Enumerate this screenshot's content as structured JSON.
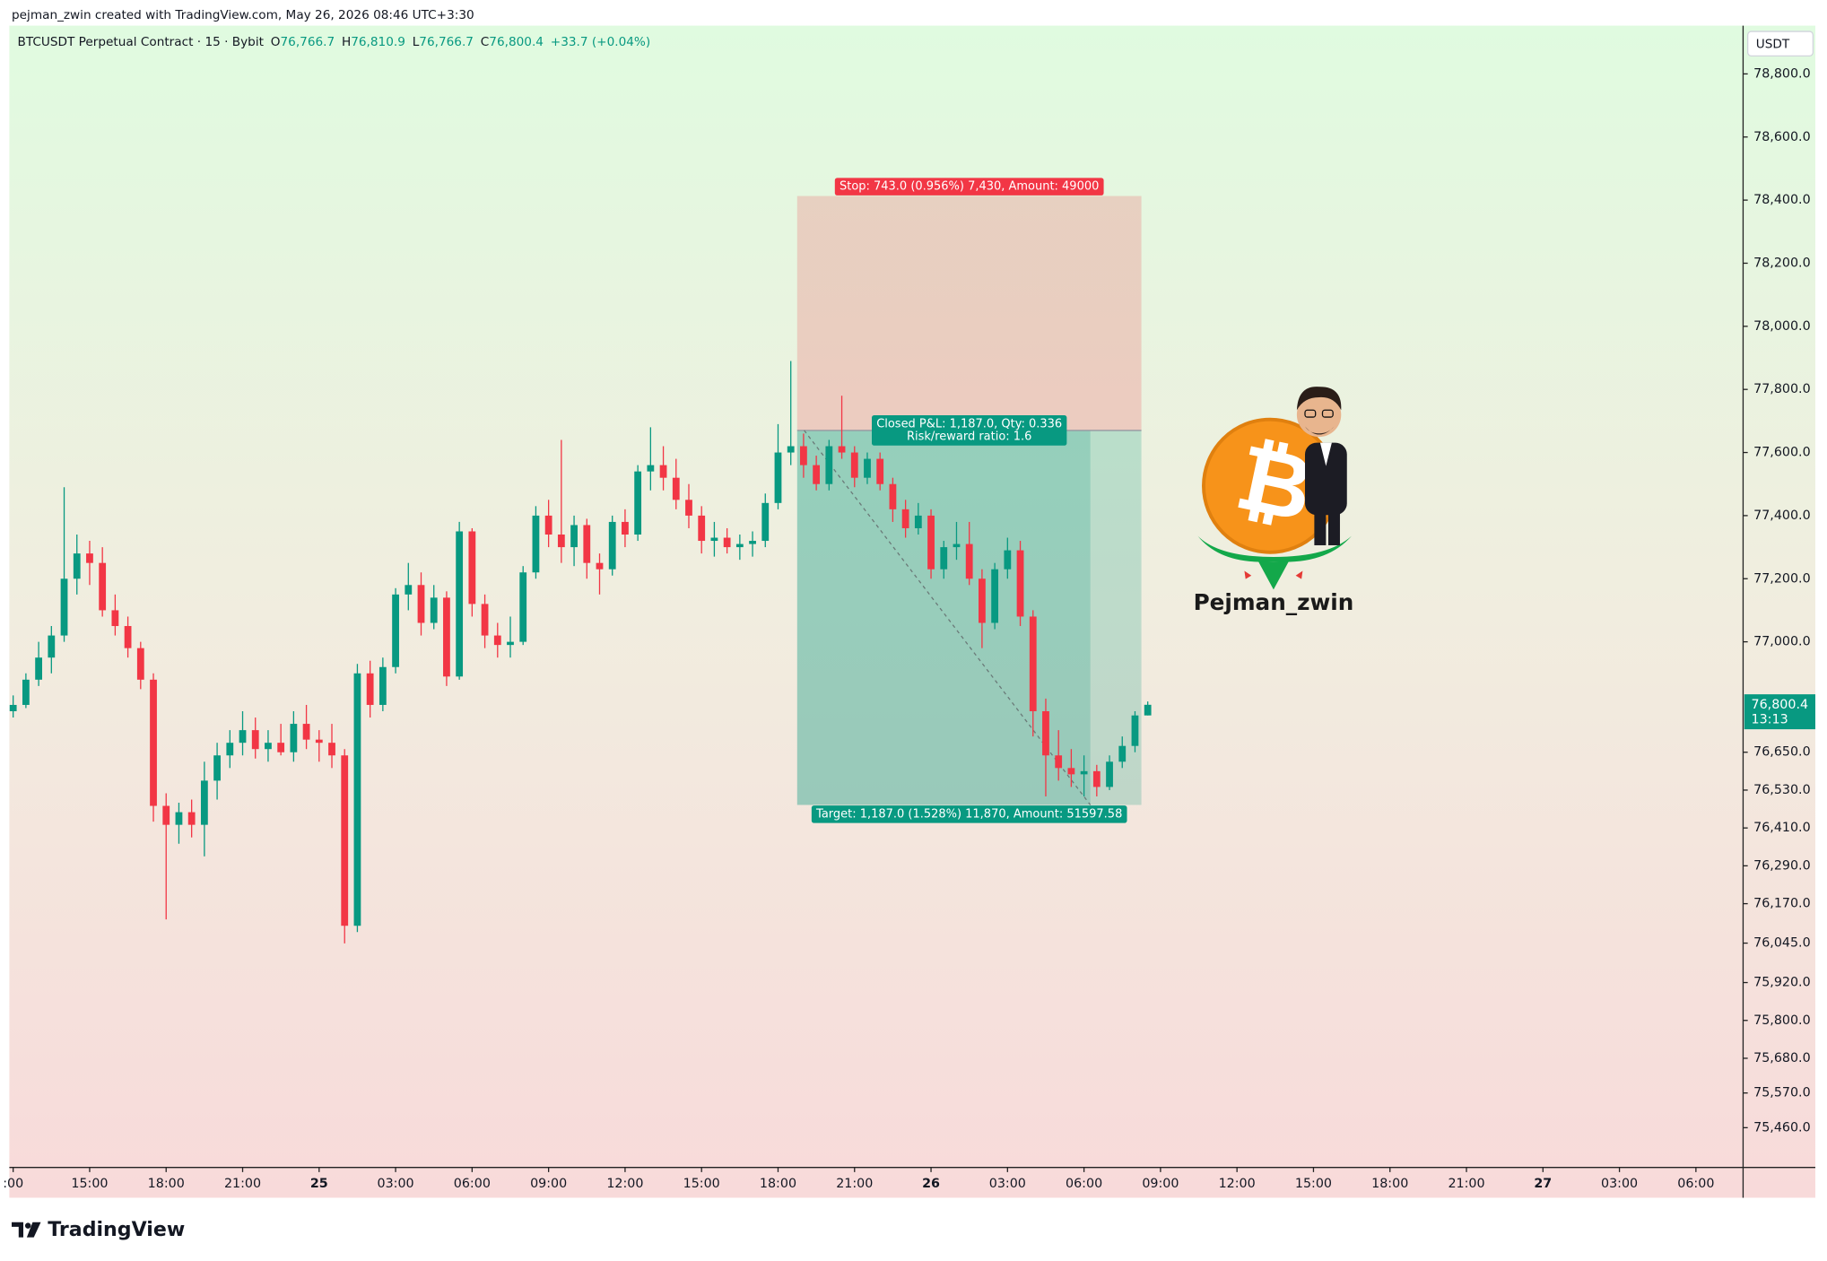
{
  "attribution": "pejman_zwin created with TradingView.com, May 26, 2026 08:46 UTC+3:30",
  "legend": {
    "symbol": "BTCUSDT Perpetual Contract · 15 · Bybit",
    "items": [
      {
        "key": "O",
        "value": "76,766.7"
      },
      {
        "key": "H",
        "value": "76,810.9"
      },
      {
        "key": "L",
        "value": "76,766.7"
      },
      {
        "key": "C",
        "value": "76,800.4"
      }
    ],
    "change": "+33.7 (+0.04%)"
  },
  "chart_data": {
    "type": "candlestick",
    "currency": "USDT",
    "up_color": "#089981",
    "down_color": "#f23645",
    "xlim": [
      11.85,
      79.85
    ],
    "ylim": [
      75334,
      78953
    ],
    "xticks": [
      {
        "value": 12,
        "label": ":00"
      },
      {
        "value": 15,
        "label": "15:00"
      },
      {
        "value": 18,
        "label": "18:00"
      },
      {
        "value": 21,
        "label": "21:00"
      },
      {
        "value": 24,
        "label": "25"
      },
      {
        "value": 27,
        "label": "03:00"
      },
      {
        "value": 30,
        "label": "06:00"
      },
      {
        "value": 33,
        "label": "09:00"
      },
      {
        "value": 36,
        "label": "12:00"
      },
      {
        "value": 39,
        "label": "15:00"
      },
      {
        "value": 42,
        "label": "18:00"
      },
      {
        "value": 45,
        "label": "21:00"
      },
      {
        "value": 48,
        "label": "26"
      },
      {
        "value": 51,
        "label": "03:00"
      },
      {
        "value": 54,
        "label": "06:00"
      },
      {
        "value": 57,
        "label": "09:00"
      },
      {
        "value": 60,
        "label": "12:00"
      },
      {
        "value": 63,
        "label": "15:00"
      },
      {
        "value": 66,
        "label": "18:00"
      },
      {
        "value": 69,
        "label": "21:00"
      },
      {
        "value": 72,
        "label": "27"
      },
      {
        "value": 75,
        "label": "03:00"
      },
      {
        "value": 78,
        "label": "06:00"
      }
    ],
    "yticks": [
      {
        "value": 78800,
        "label": "78,800.0"
      },
      {
        "value": 78600,
        "label": "78,600.0"
      },
      {
        "value": 78400,
        "label": "78,400.0"
      },
      {
        "value": 78200,
        "label": "78,200.0"
      },
      {
        "value": 78000,
        "label": "78,000.0"
      },
      {
        "value": 77800,
        "label": "77,800.0"
      },
      {
        "value": 77600,
        "label": "77,600.0"
      },
      {
        "value": 77400,
        "label": "77,400.0"
      },
      {
        "value": 77200,
        "label": "77,200.0"
      },
      {
        "value": 77000,
        "label": "77,000.0"
      },
      {
        "value": 76650,
        "label": "76,650.0"
      },
      {
        "value": 76530,
        "label": "76,530.0"
      },
      {
        "value": 76410,
        "label": "76,410.0"
      },
      {
        "value": 76290,
        "label": "76,290.0"
      },
      {
        "value": 76170,
        "label": "76,170.0"
      },
      {
        "value": 76045,
        "label": "76,045.0"
      },
      {
        "value": 75920,
        "label": "75,920.0"
      },
      {
        "value": 75800,
        "label": "75,800.0"
      },
      {
        "value": 75680,
        "label": "75,680.0"
      },
      {
        "value": 75570,
        "label": "75,570.0"
      },
      {
        "value": 75460,
        "label": "75,460.0"
      }
    ],
    "x": [
      12,
      12.5,
      13,
      13.5,
      14,
      14.5,
      15,
      15.5,
      16,
      16.5,
      17,
      17.5,
      18,
      18.5,
      19,
      19.5,
      20,
      20.5,
      21,
      21.5,
      22,
      22.5,
      23,
      23.5,
      24,
      24.5,
      25,
      25.5,
      26,
      26.5,
      27,
      27.5,
      28,
      28.5,
      29,
      29.5,
      30,
      30.5,
      31,
      31.5,
      32,
      32.5,
      33,
      33.5,
      34,
      34.5,
      35,
      35.5,
      36,
      36.5,
      37,
      37.5,
      38,
      38.5,
      39,
      39.5,
      40,
      40.5,
      41,
      41.5,
      42,
      42.5,
      43,
      43.5,
      44,
      44.5,
      45,
      45.5,
      46,
      46.5,
      47,
      47.5,
      48,
      48.5,
      49,
      49.5,
      50,
      50.5,
      51,
      51.5,
      52,
      52.5,
      53,
      53.5,
      54,
      54.5,
      55,
      55.5,
      56,
      56.5
    ],
    "candles": [
      [
        76780,
        76830,
        76760,
        76800
      ],
      [
        76800,
        76900,
        76790,
        76880
      ],
      [
        76880,
        77000,
        76860,
        76950
      ],
      [
        76950,
        77050,
        76900,
        77020
      ],
      [
        77020,
        77490,
        77000,
        77200
      ],
      [
        77200,
        77340,
        77150,
        77280
      ],
      [
        77280,
        77320,
        77180,
        77250
      ],
      [
        77250,
        77300,
        77080,
        77100
      ],
      [
        77100,
        77150,
        77020,
        77050
      ],
      [
        77050,
        77080,
        76950,
        76980
      ],
      [
        76980,
        77000,
        76850,
        76880
      ],
      [
        76880,
        76900,
        76430,
        76480
      ],
      [
        76480,
        76520,
        76120,
        76420
      ],
      [
        76420,
        76490,
        76360,
        76460
      ],
      [
        76460,
        76500,
        76380,
        76420
      ],
      [
        76420,
        76620,
        76320,
        76560
      ],
      [
        76560,
        76680,
        76500,
        76640
      ],
      [
        76640,
        76720,
        76600,
        76680
      ],
      [
        76680,
        76780,
        76640,
        76720
      ],
      [
        76720,
        76760,
        76630,
        76660
      ],
      [
        76660,
        76720,
        76620,
        76680
      ],
      [
        76680,
        76740,
        76640,
        76650
      ],
      [
        76650,
        76780,
        76620,
        76740
      ],
      [
        76740,
        76800,
        76660,
        76690
      ],
      [
        76690,
        76720,
        76620,
        76680
      ],
      [
        76680,
        76740,
        76600,
        76640
      ],
      [
        76640,
        76660,
        76044,
        76100
      ],
      [
        76100,
        76930,
        76080,
        76900
      ],
      [
        76900,
        76940,
        76760,
        76800
      ],
      [
        76800,
        76950,
        76780,
        76920
      ],
      [
        76920,
        77170,
        76900,
        77150
      ],
      [
        77150,
        77250,
        77100,
        77180
      ],
      [
        77180,
        77220,
        77020,
        77060
      ],
      [
        77060,
        77180,
        77040,
        77140
      ],
      [
        77140,
        77160,
        76860,
        76890
      ],
      [
        76890,
        77380,
        76880,
        77350
      ],
      [
        77350,
        77360,
        77080,
        77120
      ],
      [
        77120,
        77150,
        76980,
        77020
      ],
      [
        77020,
        77060,
        76950,
        76990
      ],
      [
        76990,
        77080,
        76950,
        77000
      ],
      [
        77000,
        77240,
        76990,
        77220
      ],
      [
        77220,
        77430,
        77200,
        77400
      ],
      [
        77400,
        77450,
        77300,
        77340
      ],
      [
        77340,
        77640,
        77250,
        77300
      ],
      [
        77300,
        77400,
        77240,
        77370
      ],
      [
        77370,
        77390,
        77200,
        77250
      ],
      [
        77250,
        77280,
        77150,
        77230
      ],
      [
        77230,
        77400,
        77210,
        77380
      ],
      [
        77380,
        77420,
        77300,
        77340
      ],
      [
        77340,
        77560,
        77320,
        77540
      ],
      [
        77540,
        77680,
        77480,
        77560
      ],
      [
        77560,
        77620,
        77480,
        77520
      ],
      [
        77520,
        77580,
        77420,
        77450
      ],
      [
        77450,
        77500,
        77360,
        77400
      ],
      [
        77400,
        77430,
        77280,
        77320
      ],
      [
        77320,
        77380,
        77270,
        77330
      ],
      [
        77330,
        77360,
        77280,
        77300
      ],
      [
        77300,
        77340,
        77260,
        77310
      ],
      [
        77310,
        77350,
        77270,
        77320
      ],
      [
        77320,
        77470,
        77300,
        77440
      ],
      [
        77440,
        77690,
        77420,
        77600
      ],
      [
        77600,
        77890,
        77560,
        77620
      ],
      [
        77620,
        77660,
        77520,
        77560
      ],
      [
        77560,
        77590,
        77480,
        77500
      ],
      [
        77500,
        77640,
        77480,
        77620
      ],
      [
        77620,
        77780,
        77580,
        77600
      ],
      [
        77600,
        77620,
        77490,
        77520
      ],
      [
        77520,
        77600,
        77500,
        77580
      ],
      [
        77580,
        77600,
        77480,
        77500
      ],
      [
        77500,
        77520,
        77380,
        77420
      ],
      [
        77420,
        77450,
        77330,
        77360
      ],
      [
        77360,
        77440,
        77340,
        77400
      ],
      [
        77400,
        77420,
        77200,
        77230
      ],
      [
        77230,
        77320,
        77200,
        77300
      ],
      [
        77300,
        77380,
        77260,
        77310
      ],
      [
        77310,
        77380,
        77180,
        77200
      ],
      [
        77200,
        77230,
        76980,
        77060
      ],
      [
        77060,
        77250,
        77040,
        77230
      ],
      [
        77230,
        77330,
        77200,
        77290
      ],
      [
        77290,
        77320,
        77050,
        77080
      ],
      [
        77080,
        77100,
        76700,
        76780
      ],
      [
        76780,
        76820,
        76510,
        76640
      ],
      [
        76640,
        76720,
        76560,
        76600
      ],
      [
        76600,
        76660,
        76540,
        76580
      ],
      [
        76580,
        76640,
        76510,
        76590
      ],
      [
        76590,
        76610,
        76510,
        76540
      ],
      [
        76540,
        76640,
        76530,
        76620
      ],
      [
        76620,
        76700,
        76600,
        76670
      ],
      [
        76670,
        76780,
        76650,
        76766.7
      ],
      [
        76766.7,
        76810.9,
        76766.7,
        76800.4
      ]
    ],
    "last_price": {
      "value": 76800.4,
      "label": "76,800.4"
    },
    "countdown": "13:13",
    "position": {
      "entry": 77670,
      "stop": 78413,
      "target": 76483,
      "start": 42.75,
      "end": 56.25,
      "closed_at": 54.25,
      "stop_label": "Stop: 743.0 (0.956%) 7,430, Amount: 49000",
      "pnl_label": "Closed P&L: 1,187.0, Qty: 0.336",
      "ratio_label": "Risk/reward ratio: 1.6",
      "target_label": "Target: 1,187.0 (1.528%) 11,870, Amount: 51597.58"
    }
  },
  "watermark": {
    "symbol": "₿",
    "name": "Pejman_zwin"
  },
  "footer": {
    "brand": "TradingView"
  }
}
